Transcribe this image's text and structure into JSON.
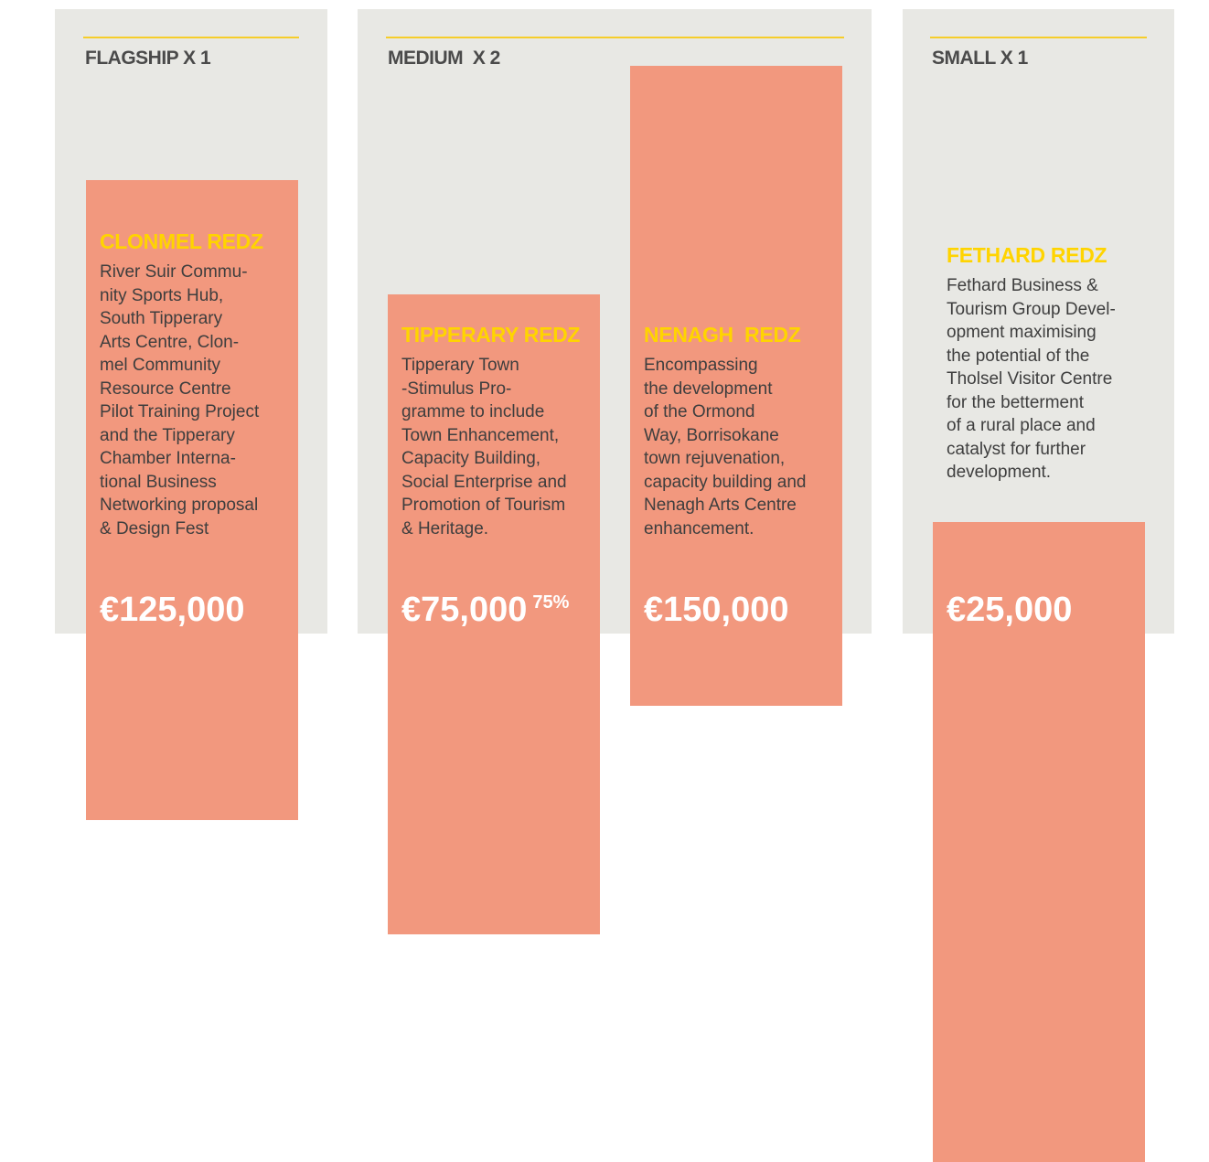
{
  "panels": [
    {
      "heading": "FLAGSHIP X 1",
      "items": [
        {
          "title": "CLONMEL REDZ",
          "lines": [
            "River Suir Commu-",
            "nity Sports Hub,",
            "South Tipperary",
            "Arts Centre, Clon-",
            "mel Community",
            "Resource Centre",
            "Pilot Training Project",
            "and the Tipperary",
            "Chamber Interna-",
            "tional Business",
            "Networking proposal",
            "& Design Fest"
          ],
          "amount": "€125,000"
        }
      ]
    },
    {
      "heading": "MEDIUM  X 2",
      "items": [
        {
          "title": "TIPPERARY REDZ",
          "lines": [
            "Tipperary Town",
            "-Stimulus Pro-",
            "gramme to include",
            "Town Enhancement,",
            "Capacity Building,",
            "Social Enterprise and",
            "Promotion of Tourism",
            "& Heritage."
          ],
          "amount": "€75,000",
          "note": "75%"
        },
        {
          "title": "NENAGH  REDZ",
          "lines": [
            "Encompassing",
            "the development",
            "of the Ormond",
            "Way, Borrisokane",
            "town rejuvenation,",
            "capacity building and",
            "Nenagh Arts Centre",
            "enhancement."
          ],
          "amount": "€150,000"
        }
      ]
    },
    {
      "heading": "SMALL X 1",
      "items": [
        {
          "title": "FETHARD REDZ",
          "lines": [
            "Fethard Business &",
            "Tourism Group Devel-",
            "opment maximising",
            "the potential of the",
            "Tholsel Visitor Centre",
            "for the betterment",
            "of a rural place and",
            "catalyst for further",
            "development."
          ],
          "amount": "€25,000"
        }
      ]
    }
  ]
}
